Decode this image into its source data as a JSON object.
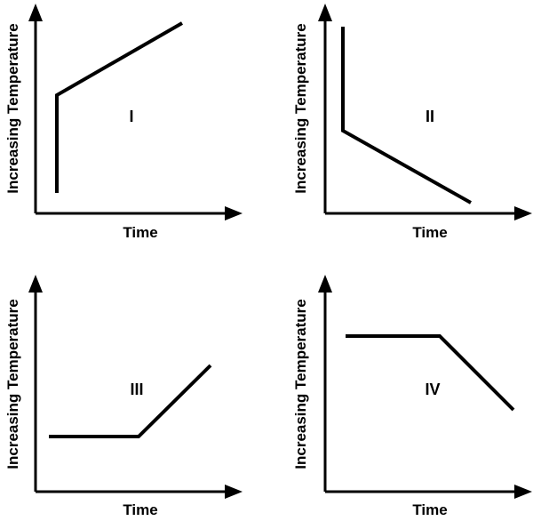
{
  "panels": [
    {
      "label": "I",
      "xlabel": "Time",
      "ylabel": "Increasing Temperature"
    },
    {
      "label": "II",
      "xlabel": "Time",
      "ylabel": "Increasing Temperature"
    },
    {
      "label": "III",
      "xlabel": "Time",
      "ylabel": "Increasing Temperature"
    },
    {
      "label": "IV",
      "xlabel": "Time",
      "ylabel": "Increasing Temperature"
    }
  ]
}
